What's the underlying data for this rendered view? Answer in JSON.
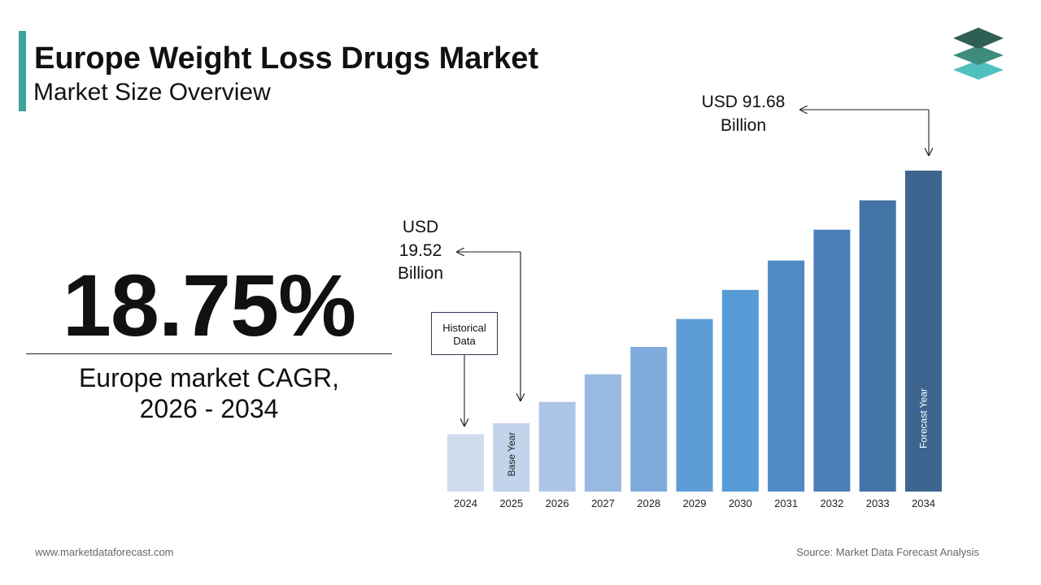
{
  "header": {
    "title": "Europe Weight Loss Drugs Market",
    "subtitle": "Market Size Overview"
  },
  "logo": {
    "icon": "layers-icon",
    "colors": [
      "#2f5e55",
      "#3e8c7e",
      "#4fc0bf"
    ]
  },
  "kpi": {
    "value": "18.75%",
    "label": "Europe market CAGR,\n2026 - 2034"
  },
  "callouts": {
    "start": "USD\n19.52\nBillion",
    "end": "USD 91.68\nBillion",
    "historical": "Historical\nData"
  },
  "footer": {
    "website": "www.marketdataforecast.com",
    "source": "Source: Market Data Forecast Analysis"
  },
  "colors": {
    "accent": "#3fa3a0",
    "bars": [
      "#d0dcee",
      "#c2d3eb",
      "#adc5e6",
      "#98b9e1",
      "#7fabdd",
      "#5e9cd8",
      "#569ad6",
      "#4f8ac4",
      "#4a80b8",
      "#4474a6",
      "#3d6590"
    ]
  },
  "chart_data": {
    "type": "bar",
    "categories": [
      "2024",
      "2025",
      "2026",
      "2027",
      "2028",
      "2029",
      "2030",
      "2031",
      "2032",
      "2033",
      "2034"
    ],
    "values": [
      16.4,
      19.52,
      25.6,
      33.5,
      41.3,
      49.3,
      57.6,
      66.0,
      74.8,
      83.2,
      91.68
    ],
    "bar_annotations": {
      "2025": "Base Year",
      "2034": "Forecast Year"
    },
    "title": "",
    "xlabel": "",
    "ylabel": "",
    "ylim": [
      0,
      91.68
    ],
    "grid": false,
    "legend": "none"
  }
}
